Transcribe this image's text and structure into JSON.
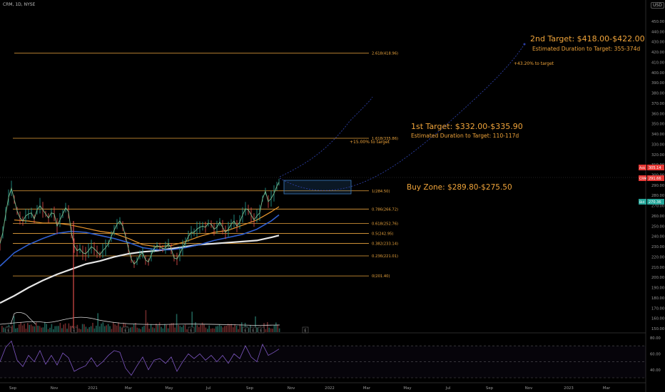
{
  "header": {
    "symbol": "CRM, 1D, NYSE",
    "currency": "USD"
  },
  "chart_data": {
    "type": "line",
    "y_axis": {
      "ticks": [
        150,
        160,
        170,
        180,
        190,
        200,
        210,
        220,
        230,
        240,
        250,
        260,
        270,
        280,
        290,
        300,
        310,
        320,
        330,
        340,
        350,
        360,
        370,
        380,
        390,
        400,
        410,
        420,
        430,
        440,
        450
      ]
    },
    "x_axis": {
      "ticks": [
        "Sep",
        "Nov",
        "2021",
        "Mar",
        "May",
        "Jul",
        "Sep",
        "Nov",
        "2022",
        "Mar",
        "May",
        "Jul",
        "Sep",
        "Nov",
        "2023",
        "Mar"
      ]
    },
    "fib_levels": [
      {
        "label": "2.618(418.96)",
        "value": 418.96
      },
      {
        "label": "1.618(335.86)",
        "value": 335.86
      },
      {
        "label": "1(284.50)",
        "value": 284.5
      },
      {
        "label": "0.786(266.72)",
        "value": 266.72
      },
      {
        "label": "0.618(252.76)",
        "value": 252.76
      },
      {
        "label": "0.5(242.95)",
        "value": 242.95
      },
      {
        "label": "0.382(233.14)",
        "value": 233.14
      },
      {
        "label": "0.236(221.01)",
        "value": 221.01
      },
      {
        "label": "0(201.40)",
        "value": 201.4
      }
    ],
    "price_badges": [
      {
        "name": "Ask",
        "value": "305.14",
        "color": "#e53935"
      },
      {
        "name": "CRM",
        "value": "291.66",
        "color": "#e53935"
      },
      {
        "name": "Bid",
        "value": "270.36",
        "color": "#26a69a"
      }
    ],
    "annotations": {
      "target2_title": "2nd Target: $418.00-$422.00",
      "target2_duration": "Estimated Duration to Target: 355-374d",
      "target2_pct": "+43.20% to target",
      "target1_title": "1st Target: $332.00-$335.90",
      "target1_duration": "Estimated Duration to Target: 110-117d",
      "target1_pct": "+15.00% to target",
      "buy_zone": "Buy Zone: $289.80-$275.50"
    },
    "price_series": [
      [
        0,
        233
      ],
      [
        4,
        244
      ],
      [
        8,
        262
      ],
      [
        12,
        278
      ],
      [
        16,
        287
      ],
      [
        20,
        276
      ],
      [
        24,
        265
      ],
      [
        28,
        258
      ],
      [
        32,
        255
      ],
      [
        36,
        260
      ],
      [
        40,
        262
      ],
      [
        44,
        263
      ],
      [
        48,
        257
      ],
      [
        52,
        266
      ],
      [
        56,
        270
      ],
      [
        60,
        266
      ],
      [
        64,
        262
      ],
      [
        68,
        258
      ],
      [
        72,
        263
      ],
      [
        76,
        262
      ],
      [
        80,
        250
      ],
      [
        84,
        256
      ],
      [
        88,
        262
      ],
      [
        92,
        268
      ],
      [
        96,
        264
      ],
      [
        100,
        244
      ],
      [
        104,
        231
      ],
      [
        108,
        226
      ],
      [
        112,
        228
      ],
      [
        116,
        224
      ],
      [
        120,
        223
      ],
      [
        124,
        226
      ],
      [
        128,
        230
      ],
      [
        132,
        228
      ],
      [
        136,
        225
      ],
      [
        140,
        222
      ],
      [
        144,
        226
      ],
      [
        148,
        229
      ],
      [
        152,
        233
      ],
      [
        156,
        240
      ],
      [
        160,
        246
      ],
      [
        164,
        252
      ],
      [
        168,
        255
      ],
      [
        172,
        250
      ],
      [
        176,
        240
      ],
      [
        180,
        228
      ],
      [
        184,
        218
      ],
      [
        188,
        213
      ],
      [
        192,
        216
      ],
      [
        196,
        222
      ],
      [
        200,
        224
      ],
      [
        204,
        217
      ],
      [
        208,
        215
      ],
      [
        212,
        222
      ],
      [
        216,
        228
      ],
      [
        220,
        231
      ],
      [
        224,
        230
      ],
      [
        228,
        228
      ],
      [
        232,
        229
      ],
      [
        236,
        233
      ],
      [
        240,
        228
      ],
      [
        244,
        219
      ],
      [
        248,
        218
      ],
      [
        252,
        223
      ],
      [
        256,
        229
      ],
      [
        260,
        234
      ],
      [
        264,
        240
      ],
      [
        268,
        244
      ],
      [
        272,
        244
      ],
      [
        276,
        247
      ],
      [
        280,
        249
      ],
      [
        284,
        250
      ],
      [
        288,
        249
      ],
      [
        292,
        253
      ],
      [
        296,
        252
      ],
      [
        300,
        247
      ],
      [
        304,
        249
      ],
      [
        308,
        254
      ],
      [
        312,
        249
      ],
      [
        316,
        244
      ],
      [
        320,
        247
      ],
      [
        324,
        252
      ],
      [
        328,
        255
      ],
      [
        332,
        250
      ],
      [
        336,
        254
      ],
      [
        340,
        261
      ],
      [
        344,
        267
      ],
      [
        348,
        266
      ],
      [
        352,
        261
      ],
      [
        356,
        256
      ],
      [
        360,
        260
      ],
      [
        364,
        263
      ],
      [
        368,
        277
      ],
      [
        372,
        284
      ],
      [
        376,
        274
      ],
      [
        380,
        277
      ],
      [
        384,
        282
      ],
      [
        388,
        289
      ],
      [
        391,
        293
      ]
    ],
    "ma_orange": [
      [
        20,
        256
      ],
      [
        40,
        255
      ],
      [
        60,
        253
      ],
      [
        80,
        253
      ],
      [
        100,
        251
      ],
      [
        120,
        248
      ],
      [
        140,
        245
      ],
      [
        160,
        243
      ],
      [
        180,
        238
      ],
      [
        200,
        232
      ],
      [
        220,
        230
      ],
      [
        240,
        231
      ],
      [
        260,
        235
      ],
      [
        280,
        240
      ],
      [
        300,
        244
      ],
      [
        320,
        246
      ],
      [
        340,
        251
      ],
      [
        360,
        256
      ],
      [
        380,
        264
      ],
      [
        391,
        269
      ]
    ],
    "ma_blue": [
      [
        0,
        211
      ],
      [
        20,
        224
      ],
      [
        40,
        232
      ],
      [
        60,
        238
      ],
      [
        80,
        243
      ],
      [
        100,
        245
      ],
      [
        120,
        244
      ],
      [
        140,
        241
      ],
      [
        160,
        238
      ],
      [
        180,
        234
      ],
      [
        200,
        229
      ],
      [
        220,
        227
      ],
      [
        240,
        227
      ],
      [
        260,
        229
      ],
      [
        280,
        232
      ],
      [
        300,
        236
      ],
      [
        320,
        239
      ],
      [
        340,
        242
      ],
      [
        360,
        247
      ],
      [
        380,
        255
      ],
      [
        391,
        261
      ]
    ],
    "ma_white": [
      [
        0,
        175
      ],
      [
        20,
        182
      ],
      [
        40,
        190
      ],
      [
        60,
        197
      ],
      [
        80,
        203
      ],
      [
        100,
        208
      ],
      [
        120,
        213
      ],
      [
        140,
        216
      ],
      [
        160,
        220
      ],
      [
        180,
        223
      ],
      [
        200,
        225
      ],
      [
        220,
        226
      ],
      [
        240,
        228
      ],
      [
        260,
        230
      ],
      [
        280,
        232
      ],
      [
        300,
        233
      ],
      [
        320,
        234
      ],
      [
        340,
        235
      ],
      [
        360,
        236
      ],
      [
        380,
        239
      ],
      [
        391,
        241
      ]
    ],
    "rsi_axis": {
      "ticks": [
        "80.00",
        "60.00",
        "40.00"
      ]
    },
    "rsi_series": [
      [
        0,
        50
      ],
      [
        8,
        68
      ],
      [
        16,
        76
      ],
      [
        24,
        52
      ],
      [
        32,
        44
      ],
      [
        40,
        58
      ],
      [
        48,
        50
      ],
      [
        56,
        64
      ],
      [
        64,
        47
      ],
      [
        72,
        58
      ],
      [
        80,
        46
      ],
      [
        88,
        61
      ],
      [
        96,
        55
      ],
      [
        104,
        38
      ],
      [
        112,
        42
      ],
      [
        120,
        45
      ],
      [
        128,
        55
      ],
      [
        136,
        44
      ],
      [
        144,
        50
      ],
      [
        152,
        58
      ],
      [
        160,
        64
      ],
      [
        168,
        62
      ],
      [
        176,
        42
      ],
      [
        184,
        33
      ],
      [
        192,
        45
      ],
      [
        200,
        56
      ],
      [
        208,
        40
      ],
      [
        216,
        52
      ],
      [
        224,
        54
      ],
      [
        232,
        48
      ],
      [
        240,
        56
      ],
      [
        248,
        38
      ],
      [
        256,
        50
      ],
      [
        264,
        60
      ],
      [
        272,
        54
      ],
      [
        280,
        60
      ],
      [
        288,
        52
      ],
      [
        296,
        58
      ],
      [
        304,
        50
      ],
      [
        312,
        58
      ],
      [
        320,
        48
      ],
      [
        328,
        60
      ],
      [
        336,
        54
      ],
      [
        344,
        70
      ],
      [
        352,
        56
      ],
      [
        360,
        50
      ],
      [
        368,
        72
      ],
      [
        376,
        58
      ],
      [
        384,
        62
      ],
      [
        391,
        66
      ]
    ]
  }
}
